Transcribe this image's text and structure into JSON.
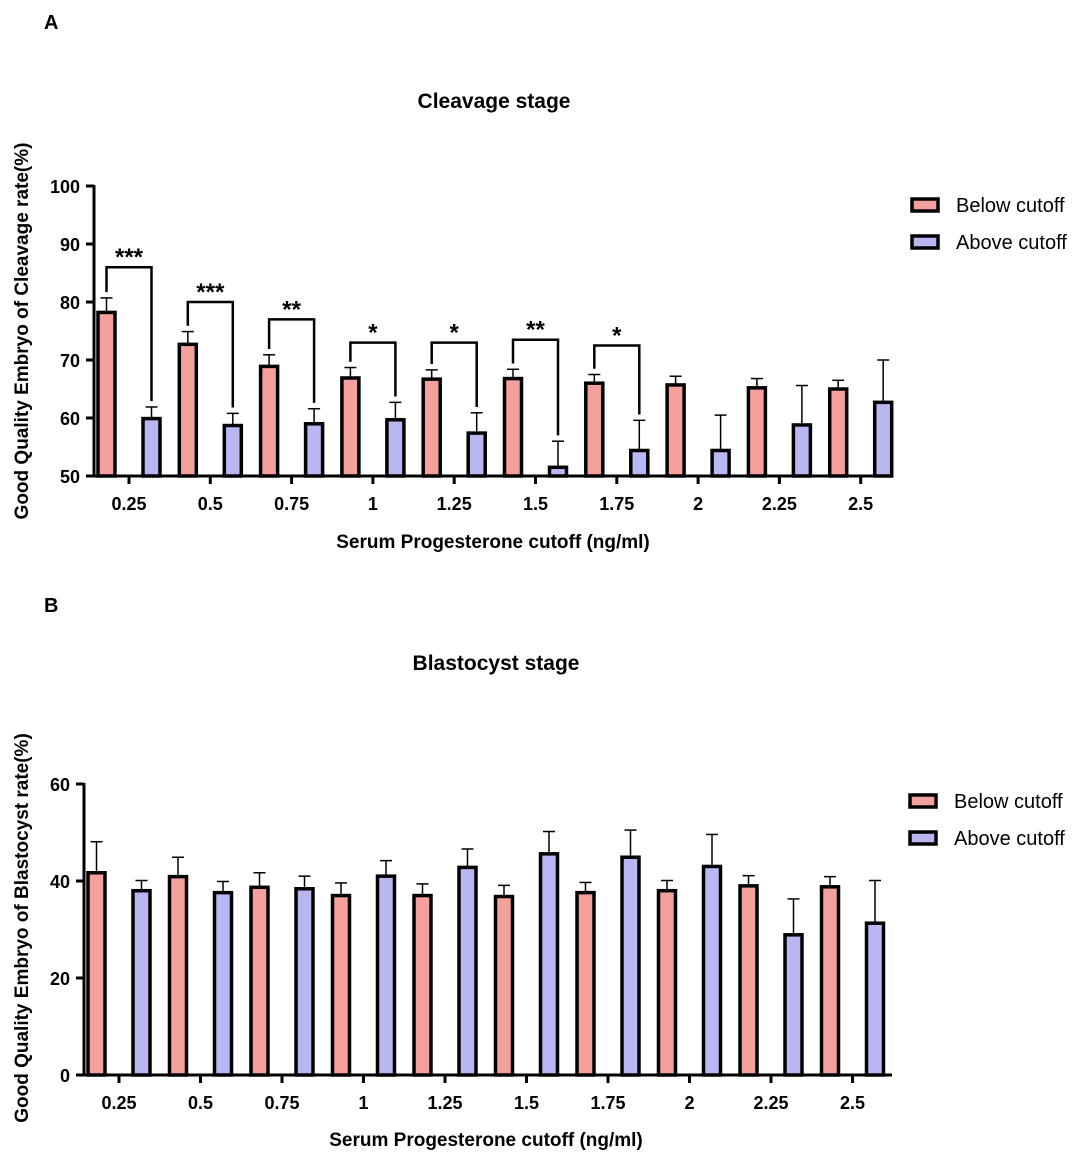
{
  "colors": {
    "below": "#f4a09c",
    "above": "#b9b7f2",
    "stroke": "#000000"
  },
  "chart_data": [
    {
      "type": "bar",
      "panel": "A",
      "title": "Cleavage stage",
      "xlabel": "Serum Progesterone cutoff (ng/ml)",
      "ylabel": "Good Quality Embryo of Cleavage rate(%)",
      "categories": [
        "0.25",
        "0.5",
        "0.75",
        "1",
        "1.25",
        "1.5",
        "1.75",
        "2",
        "2.25",
        "2.5"
      ],
      "ylim": [
        50,
        100
      ],
      "yticks": [
        "50",
        "60",
        "70",
        "80",
        "90",
        "100"
      ],
      "legend_position": "right",
      "series": [
        {
          "name": "Below cutoff",
          "values": [
            78.2,
            72.7,
            68.9,
            66.9,
            66.7,
            66.8,
            66.0,
            65.7,
            65.2,
            65.0
          ],
          "errors": [
            2.5,
            2.2,
            2.0,
            1.8,
            1.6,
            1.6,
            1.5,
            1.5,
            1.6,
            1.5
          ]
        },
        {
          "name": "Above cutoff",
          "values": [
            59.9,
            58.7,
            59.0,
            59.7,
            57.4,
            51.5,
            54.4,
            54.4,
            58.8,
            62.7
          ],
          "errors": [
            2.0,
            2.1,
            2.6,
            3.0,
            3.5,
            4.5,
            5.2,
            6.1,
            6.8,
            7.3
          ]
        }
      ],
      "significance": [
        {
          "category_index": 0,
          "label": "***",
          "y": 86
        },
        {
          "category_index": 1,
          "label": "***",
          "y": 80
        },
        {
          "category_index": 2,
          "label": "**",
          "y": 77
        },
        {
          "category_index": 3,
          "label": "*",
          "y": 73
        },
        {
          "category_index": 4,
          "label": "*",
          "y": 73
        },
        {
          "category_index": 5,
          "label": "**",
          "y": 73.5
        },
        {
          "category_index": 6,
          "label": "*",
          "y": 72.5
        }
      ]
    },
    {
      "type": "bar",
      "panel": "B",
      "title": "Blastocyst stage",
      "xlabel": "Serum Progesterone cutoff (ng/ml)",
      "ylabel": "Good Quality Embryo of Blastocyst rate(%)",
      "categories": [
        "0.25",
        "0.5",
        "0.75",
        "1",
        "1.25",
        "1.5",
        "1.75",
        "2",
        "2.25",
        "2.5"
      ],
      "ylim": [
        0,
        60
      ],
      "yticks": [
        "0",
        "20",
        "40",
        "60"
      ],
      "legend_position": "right",
      "series": [
        {
          "name": "Below cutoff",
          "values": [
            41.7,
            40.9,
            38.7,
            37.0,
            37.0,
            36.8,
            37.6,
            38.0,
            39.0,
            38.8
          ],
          "errors": [
            6.4,
            4.0,
            3.0,
            2.6,
            2.4,
            2.3,
            2.1,
            2.1,
            2.1,
            2.1
          ]
        },
        {
          "name": "Above cutoff",
          "values": [
            38.0,
            37.6,
            38.4,
            41.0,
            42.8,
            45.6,
            44.9,
            43.0,
            28.9,
            31.3
          ],
          "errors": [
            2.1,
            2.3,
            2.6,
            3.2,
            3.8,
            4.6,
            5.6,
            6.6,
            7.4,
            8.8
          ]
        }
      ]
    }
  ]
}
